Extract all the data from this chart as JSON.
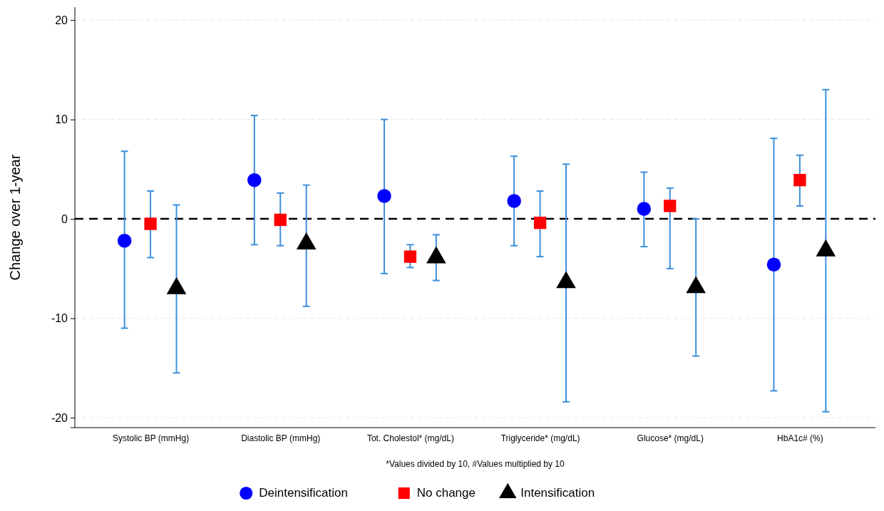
{
  "chart_data": {
    "type": "scatter",
    "ylabel": "Change over 1-year",
    "categories": [
      "Systolic BP (mmHg)",
      "Diastolic BP (mmHg)",
      "Tot. Cholestol* (mg/dL)",
      "Triglyceride* (mg/dL)",
      "Glucose* (mg/dL)",
      "HbA1c# (%)"
    ],
    "ylim": [
      -21,
      21.3
    ],
    "yticks": [
      -20,
      -10,
      0,
      10,
      20
    ],
    "grid": "y",
    "legend": "bottom",
    "ref_lines": [
      {
        "axis": "y",
        "value": 0,
        "color": "#000000",
        "line_style": "dashed"
      }
    ],
    "annotations": [
      "*Values divided by 10, #Values multiplied by 10"
    ],
    "series": [
      {
        "name": "Deintensification",
        "color": "#0000ff",
        "marker": "circle",
        "values": [
          -2.2,
          3.9,
          2.3,
          1.8,
          1.0,
          -4.6
        ],
        "errors": [
          [
            -11.0,
            6.8
          ],
          [
            -2.6,
            10.4
          ],
          [
            -5.5,
            10.0
          ],
          [
            -2.7,
            6.3
          ],
          [
            -2.8,
            4.7
          ],
          [
            -17.3,
            8.1
          ]
        ]
      },
      {
        "name": "No change",
        "color": "#ff0000",
        "marker": "square",
        "values": [
          -0.5,
          -0.1,
          -3.8,
          -0.4,
          1.3,
          3.9
        ],
        "errors": [
          [
            -3.9,
            2.8
          ],
          [
            -2.7,
            2.6
          ],
          [
            -4.9,
            -2.6
          ],
          [
            -3.8,
            2.8
          ],
          [
            -5.0,
            3.1
          ],
          [
            1.3,
            6.4
          ]
        ]
      },
      {
        "name": "Intensification",
        "color": "#000000",
        "marker": "triangle",
        "values": [
          -7.0,
          -2.5,
          -3.9,
          -6.4,
          -6.9,
          -3.2
        ],
        "errors": [
          [
            -15.5,
            1.4
          ],
          [
            -8.8,
            3.4
          ],
          [
            -6.2,
            -1.6
          ],
          [
            -18.4,
            5.5
          ],
          [
            -13.8,
            0
          ],
          [
            -19.4,
            13.0
          ]
        ]
      }
    ]
  }
}
